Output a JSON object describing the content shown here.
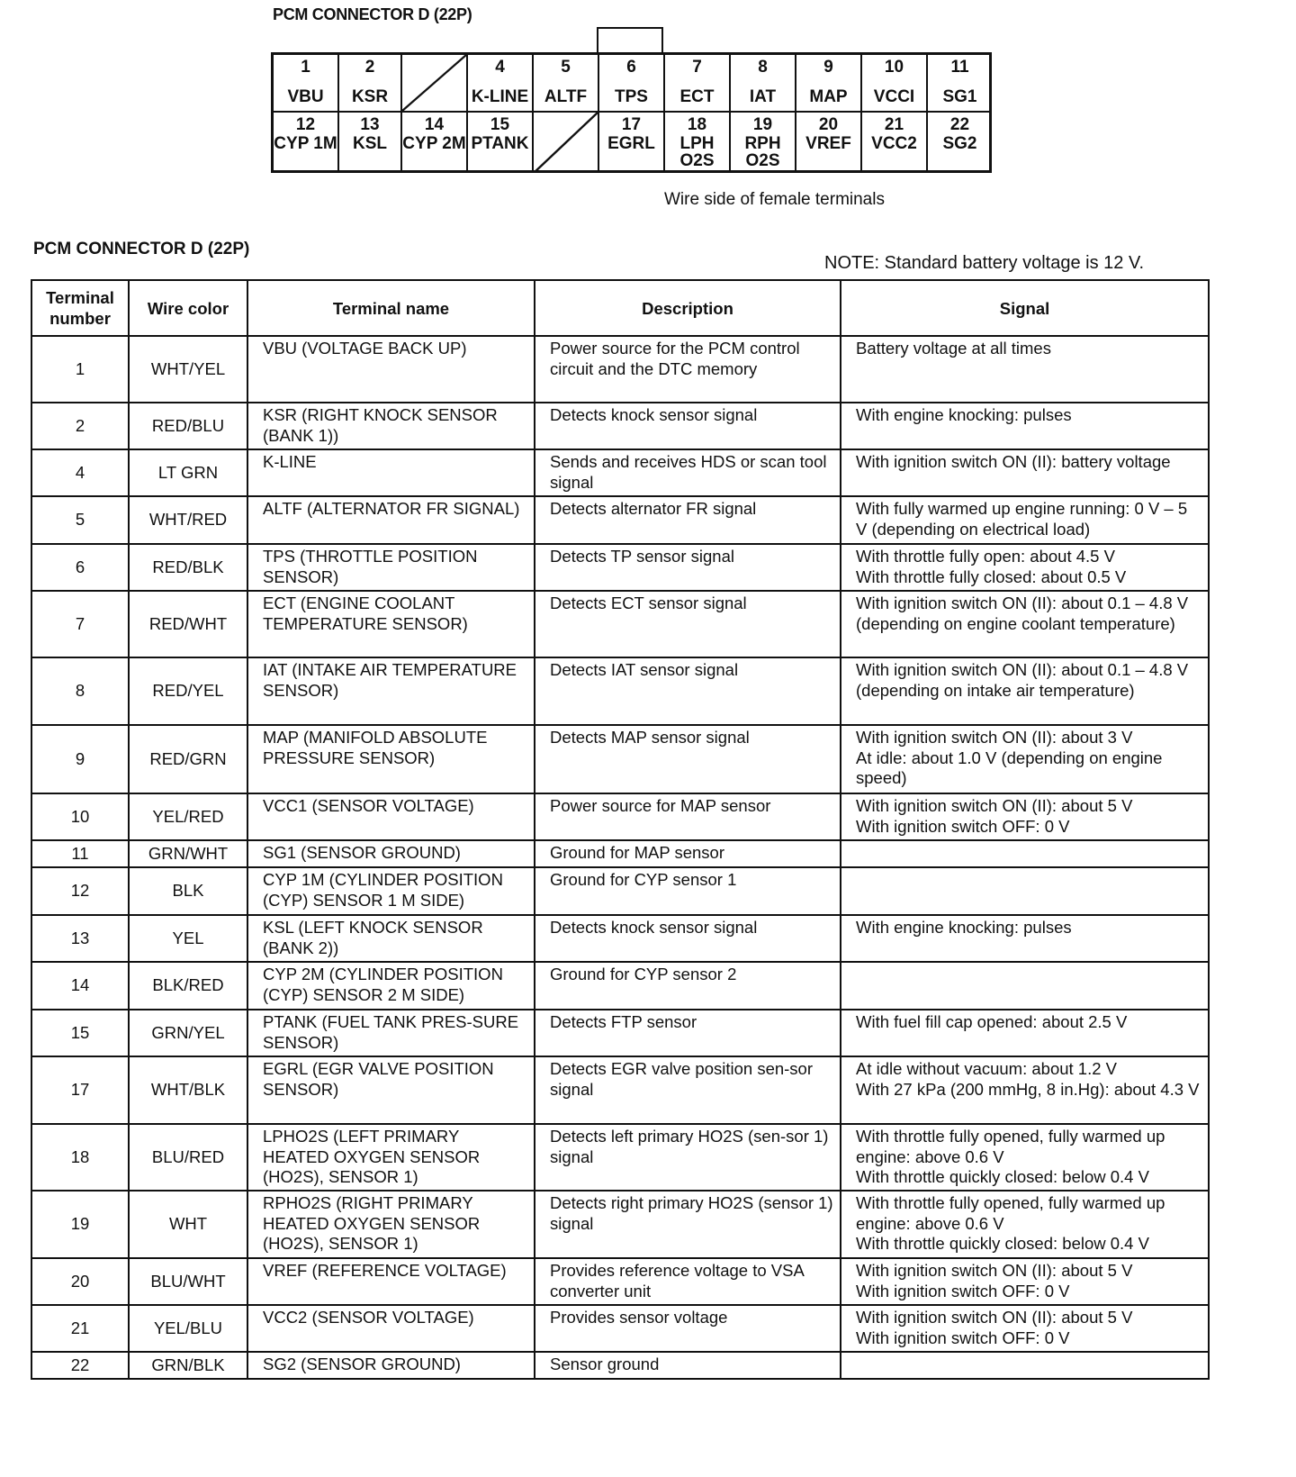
{
  "diagram": {
    "title": "PCM CONNECTOR D (22P)",
    "caption": "Wire side of female terminals",
    "top_row": [
      {
        "num": "1",
        "label": "VBU"
      },
      {
        "num": "2",
        "label": "KSR"
      },
      {
        "num": "",
        "label": "",
        "empty": true
      },
      {
        "num": "4",
        "label": "K-LINE"
      },
      {
        "num": "5",
        "label": "ALTF"
      },
      {
        "num": "6",
        "label": "TPS"
      },
      {
        "num": "7",
        "label": "ECT"
      },
      {
        "num": "8",
        "label": "IAT"
      },
      {
        "num": "9",
        "label": "MAP"
      },
      {
        "num": "10",
        "label": "VCCI"
      },
      {
        "num": "11",
        "label": "SG1"
      }
    ],
    "bottom_row": [
      {
        "num": "12",
        "label": "CYP 1M"
      },
      {
        "num": "13",
        "label": "KSL"
      },
      {
        "num": "14",
        "label": "CYP 2M"
      },
      {
        "num": "15",
        "label": "PTANK"
      },
      {
        "num": "",
        "label": "",
        "empty": true
      },
      {
        "num": "17",
        "label": "EGRL"
      },
      {
        "num": "18",
        "label": "LPH O2S"
      },
      {
        "num": "19",
        "label": "RPH O2S"
      },
      {
        "num": "20",
        "label": "VREF"
      },
      {
        "num": "21",
        "label": "VCC2"
      },
      {
        "num": "22",
        "label": "SG2"
      }
    ]
  },
  "table_title": "PCM CONNECTOR D (22P)",
  "note": "NOTE:  Standard battery voltage is 12 V.",
  "headers": [
    "Terminal number",
    "Wire color",
    "Terminal name",
    "Description",
    "Signal"
  ],
  "rows": [
    [
      "1",
      "WHT/YEL",
      "VBU (VOLTAGE BACK UP)",
      "Power source for the PCM control circuit and the DTC memory",
      "Battery voltage at all times"
    ],
    [
      "2",
      "RED/BLU",
      "KSR (RIGHT KNOCK SENSOR (BANK 1))",
      "Detects knock sensor signal",
      "With engine knocking: pulses"
    ],
    [
      "4",
      "LT GRN",
      "K-LINE",
      "Sends and receives HDS or scan tool signal",
      "With ignition switch ON (II): battery voltage"
    ],
    [
      "5",
      "WHT/RED",
      "ALTF (ALTERNATOR FR SIGNAL)",
      "Detects alternator FR signal",
      "With fully warmed up engine running: 0 V – 5 V (depending on electrical load)"
    ],
    [
      "6",
      "RED/BLK",
      "TPS (THROTTLE POSITION SENSOR)",
      "Detects TP sensor signal",
      "With throttle fully open: about 4.5 V\nWith throttle fully closed: about 0.5 V"
    ],
    [
      "7",
      "RED/WHT",
      "ECT (ENGINE COOLANT TEMPERATURE SENSOR)",
      "Detects ECT sensor signal",
      "With ignition switch ON (II): about 0.1 – 4.8 V (depending on engine coolant temperature)"
    ],
    [
      "8",
      "RED/YEL",
      "IAT (INTAKE AIR TEMPERATURE SENSOR)",
      "Detects IAT sensor signal",
      "With ignition switch ON (II): about 0.1 – 4.8 V (depending on intake air temperature)"
    ],
    [
      "9",
      "RED/GRN",
      "MAP (MANIFOLD ABSOLUTE PRESSURE SENSOR)",
      "Detects MAP sensor signal",
      "With ignition switch ON (II): about 3 V\nAt idle: about 1.0 V (depending on engine speed)"
    ],
    [
      "10",
      "YEL/RED",
      "VCC1 (SENSOR VOLTAGE)",
      "Power source for MAP sensor",
      "With ignition switch ON (II): about 5 V\nWith ignition switch OFF: 0 V"
    ],
    [
      "11",
      "GRN/WHT",
      "SG1 (SENSOR GROUND)",
      "Ground for MAP sensor",
      ""
    ],
    [
      "12",
      "BLK",
      "CYP 1M (CYLINDER POSITION (CYP) SENSOR 1 M SIDE)",
      "Ground for CYP sensor 1",
      ""
    ],
    [
      "13",
      "YEL",
      "KSL (LEFT KNOCK SENSOR (BANK 2))",
      "Detects knock sensor signal",
      "With engine knocking: pulses"
    ],
    [
      "14",
      "BLK/RED",
      "CYP 2M (CYLINDER POSITION (CYP) SENSOR 2 M SIDE)",
      "Ground for CYP sensor 2",
      ""
    ],
    [
      "15",
      "GRN/YEL",
      "PTANK (FUEL TANK PRES-SURE SENSOR)",
      "Detects FTP sensor",
      "With fuel fill cap opened: about 2.5 V"
    ],
    [
      "17",
      "WHT/BLK",
      "EGRL (EGR VALVE POSITION SENSOR)",
      "Detects EGR valve position sen-sor signal",
      "At idle without vacuum: about 1.2 V\nWith 27 kPa (200 mmHg, 8 in.Hg): about 4.3 V"
    ],
    [
      "18",
      "BLU/RED",
      "LPHO2S (LEFT PRIMARY HEATED OXYGEN SENSOR (HO2S), SENSOR 1)",
      "Detects left primary HO2S (sen-sor 1) signal",
      "With throttle fully opened, fully warmed up engine: above 0.6 V\nWith throttle quickly closed: below 0.4 V"
    ],
    [
      "19",
      "WHT",
      "RPHO2S (RIGHT PRIMARY HEATED OXYGEN SENSOR (HO2S), SENSOR 1)",
      "Detects right primary HO2S (sensor 1) signal",
      "With throttle fully opened, fully warmed up engine: above 0.6 V\nWith throttle quickly closed: below 0.4 V"
    ],
    [
      "20",
      "BLU/WHT",
      "VREF (REFERENCE VOLTAGE)",
      "Provides reference voltage to VSA converter unit",
      "With ignition switch ON (II): about 5 V\nWith ignition switch OFF: 0 V"
    ],
    [
      "21",
      "YEL/BLU",
      "VCC2 (SENSOR VOLTAGE)",
      "Provides sensor voltage",
      "With ignition switch ON (II): about 5 V\nWith ignition switch OFF: 0 V"
    ],
    [
      "22",
      "GRN/BLK",
      "SG2 (SENSOR GROUND)",
      "Sensor ground",
      ""
    ]
  ]
}
